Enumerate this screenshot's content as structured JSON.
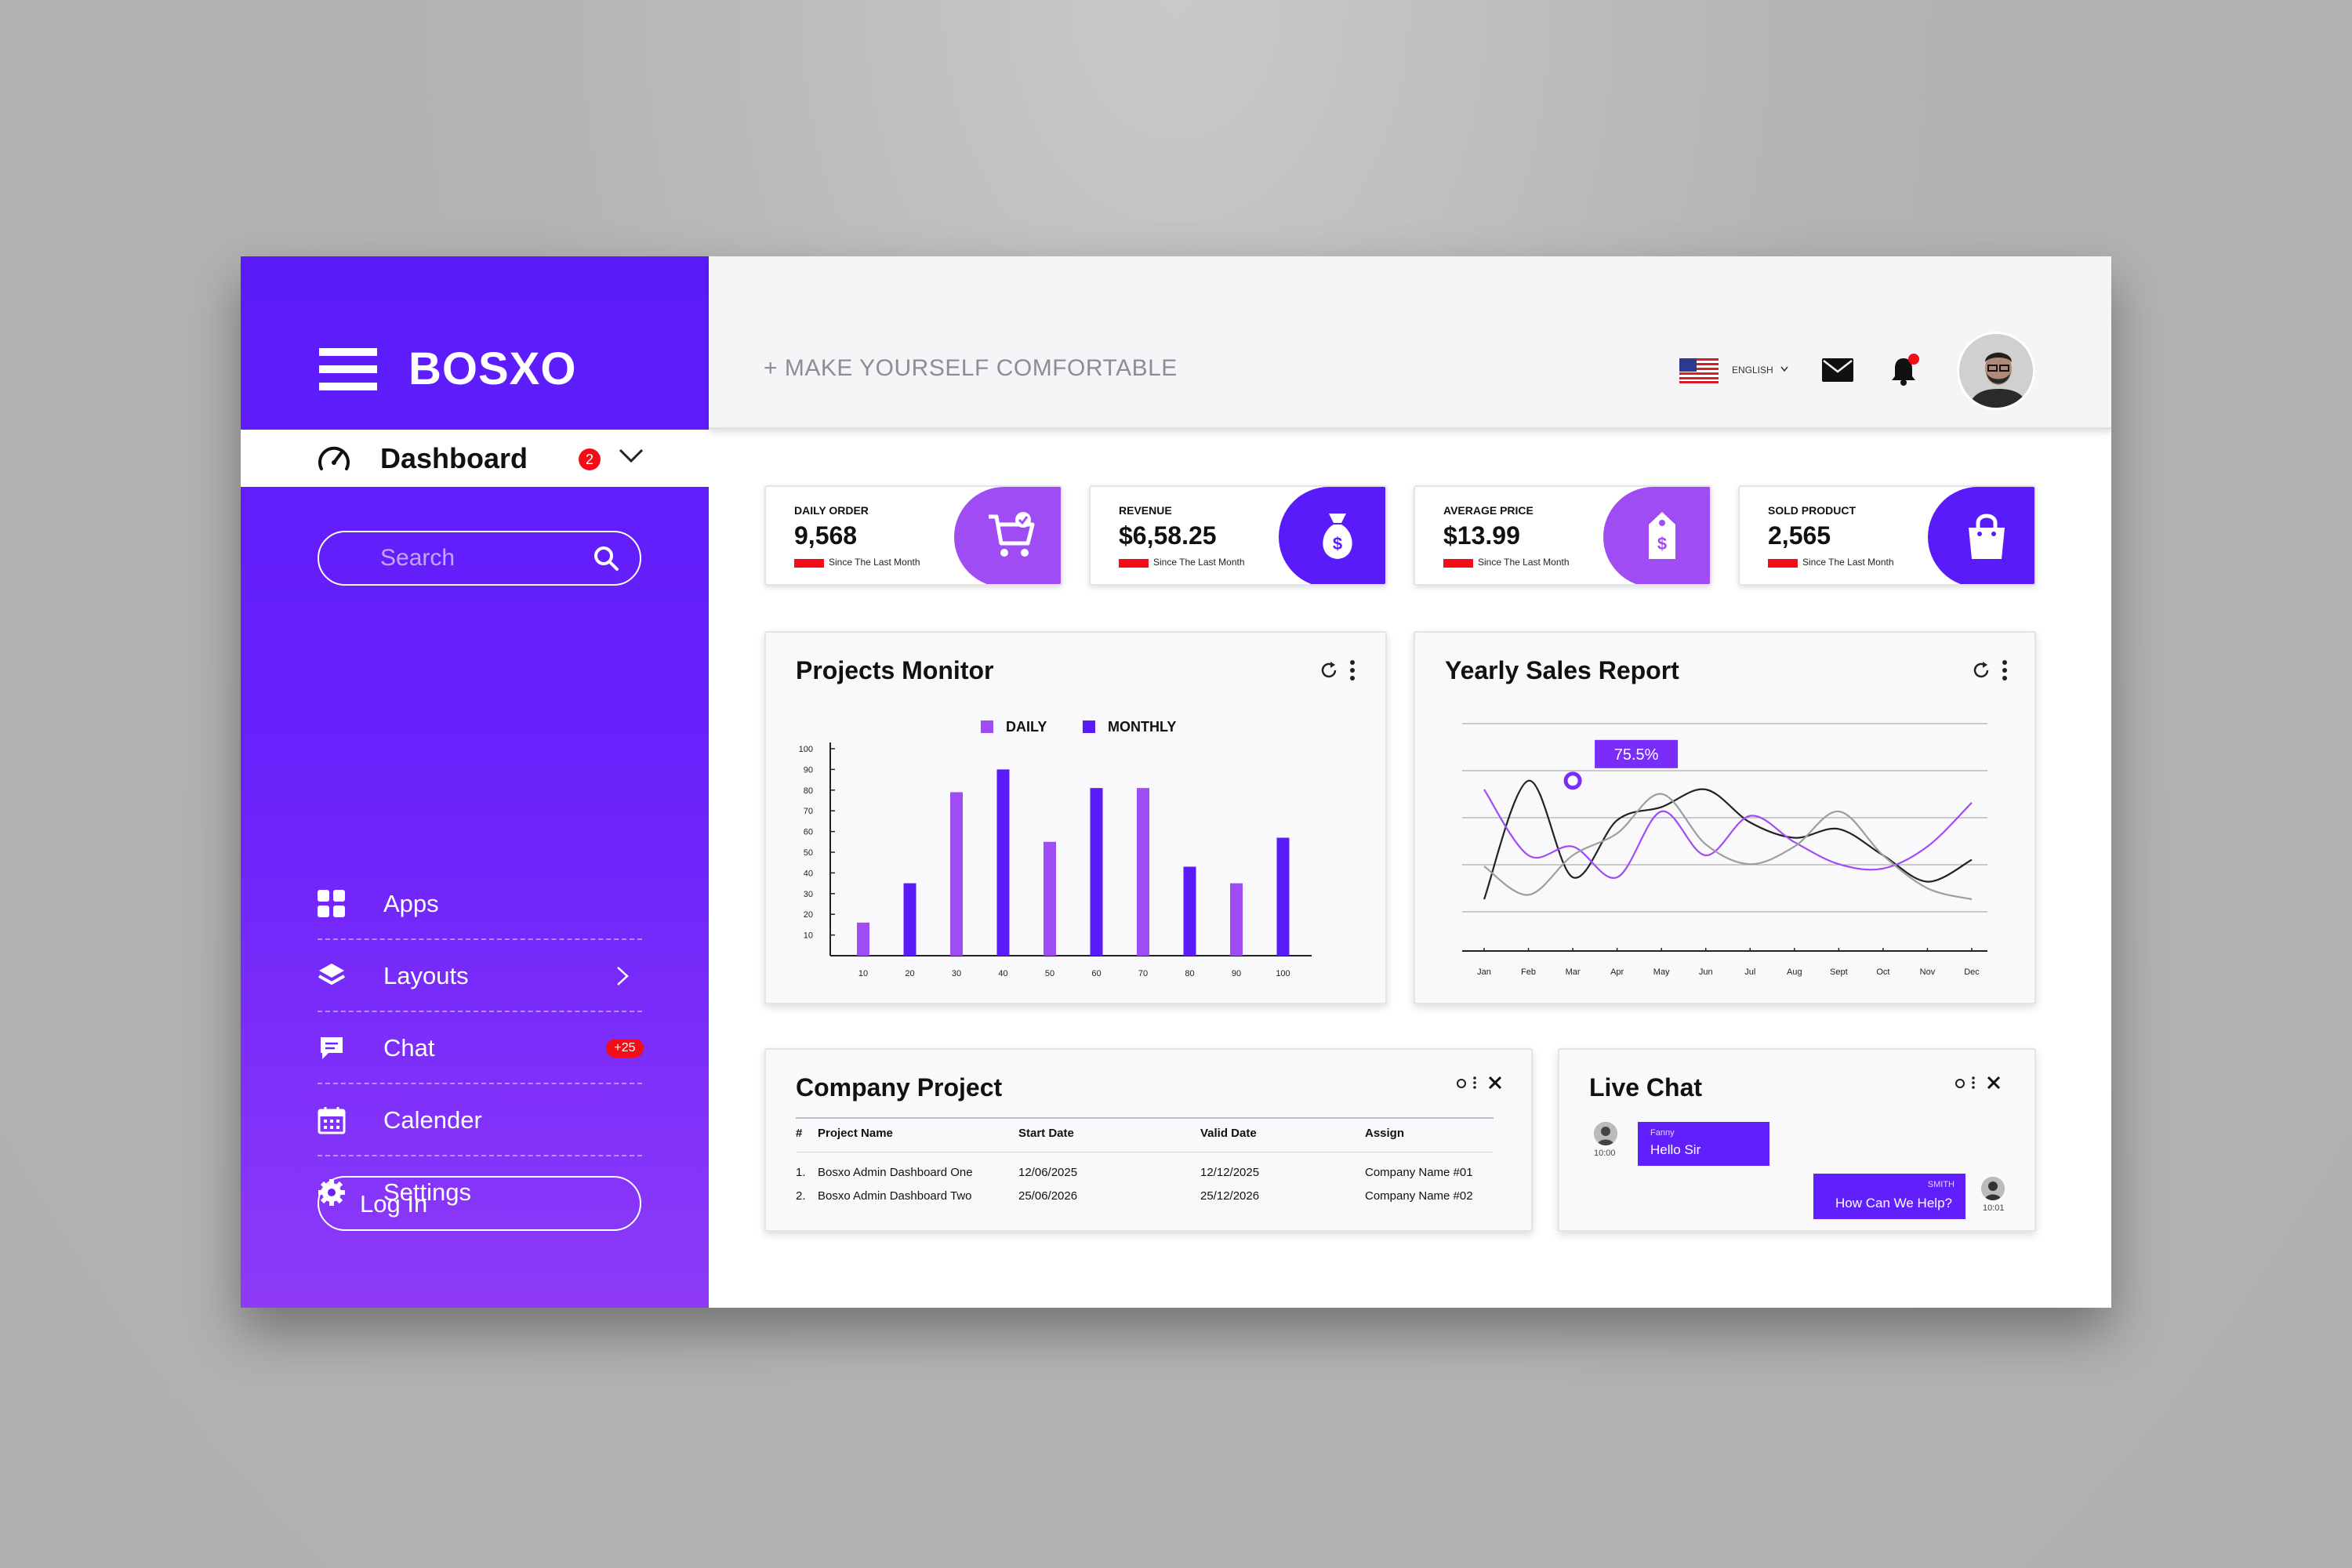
{
  "brand": {
    "name": "BOSXO"
  },
  "sidebar": {
    "dashboard": {
      "label": "Dashboard",
      "badge": "2"
    },
    "search": {
      "placeholder": "Search"
    },
    "items": [
      {
        "label": "Apps",
        "icon": "grid-icon"
      },
      {
        "label": "Layouts",
        "icon": "layers-icon"
      },
      {
        "label": "Chat",
        "icon": "chat-icon",
        "badge": "+25"
      },
      {
        "label": "Calender",
        "icon": "calendar-icon"
      },
      {
        "label": "Settings",
        "icon": "gear-icon"
      }
    ],
    "login": "Log In"
  },
  "header": {
    "tagline": "+ MAKE YOURSELF COMFORTABLE",
    "language": "ENGLISH"
  },
  "stats": [
    {
      "label": "DAILY ORDER",
      "value": "9,568",
      "note": "Since The Last Month",
      "icon": "cart-icon"
    },
    {
      "label": "REVENUE",
      "value": "$6,58.25",
      "note": "Since The Last Month",
      "icon": "money-bag-icon"
    },
    {
      "label": "AVERAGE PRICE",
      "value": "$13.99",
      "note": "Since The Last Month",
      "icon": "price-tag-icon"
    },
    {
      "label": "SOLD PRODUCT",
      "value": "2,565",
      "note": "Since The Last Month",
      "icon": "shopping-bag-icon"
    }
  ],
  "projects_monitor": {
    "title": "Projects Monitor",
    "legend": [
      "DAILY",
      "MONTHLY"
    ]
  },
  "yearly_sales": {
    "title": "Yearly Sales Report",
    "tooltip": "75.5%"
  },
  "chart_data": [
    {
      "type": "bar",
      "title": "Projects Monitor",
      "categories": [
        "10",
        "20",
        "30",
        "40",
        "50",
        "60",
        "70",
        "80",
        "90",
        "100"
      ],
      "yticks": [
        "10",
        "20",
        "30",
        "40",
        "50",
        "60",
        "70",
        "80",
        "90",
        "100"
      ],
      "ylim": [
        0,
        100
      ],
      "series": [
        {
          "name": "DAILY",
          "values": [
            16,
            35,
            79,
            90,
            55,
            81,
            81,
            43,
            35,
            57
          ]
        }
      ],
      "bar_colors": [
        "#9f4cf5",
        "#5a1bfb",
        "#9f4cf5",
        "#5a1bfb",
        "#9f4cf5",
        "#5a1bfb",
        "#9f4cf5",
        "#5a1bfb",
        "#9f4cf5",
        "#5a1bfb"
      ],
      "legend": [
        "DAILY",
        "MONTHLY"
      ],
      "legend_colors": [
        "#9f4cf5",
        "#5a1bfb"
      ],
      "legend_position": "top-center"
    },
    {
      "type": "line",
      "title": "Yearly Sales Report",
      "categories": [
        "Jan",
        "Feb",
        "Mar",
        "Apr",
        "May",
        "Jun",
        "Jul",
        "Aug",
        "Sept",
        "Oct",
        "Nov",
        "Dec"
      ],
      "ylim": [
        0,
        100
      ],
      "grid": true,
      "series": [
        {
          "color": "#222222",
          "values": [
            20,
            74,
            30,
            56,
            62,
            70,
            55,
            48,
            52,
            40,
            28,
            38
          ]
        },
        {
          "color": "#9f4cf5",
          "values": [
            70,
            40,
            44,
            30,
            60,
            40,
            58,
            46,
            36,
            34,
            44,
            64
          ]
        },
        {
          "color": "#9e9e9e",
          "values": [
            35,
            22,
            40,
            50,
            68,
            45,
            36,
            44,
            60,
            40,
            25,
            20
          ]
        }
      ],
      "annotation": {
        "label": "75.5%",
        "category": "Mar",
        "value": 74
      }
    }
  ],
  "company_project": {
    "title": "Company Project",
    "headers": [
      "#",
      "Project Name",
      "Start Date",
      "Valid Date",
      "Assign"
    ],
    "rows": [
      [
        "1.",
        "Bosxo Admin Dashboard One",
        "12/06/2025",
        "12/12/2025",
        "Company Name #01"
      ],
      [
        "2.",
        "Bosxo Admin Dashboard Two",
        "25/06/2026",
        "25/12/2026",
        "Company Name #02"
      ]
    ]
  },
  "live_chat": {
    "title": "Live Chat",
    "messages": [
      {
        "name": "Fanny",
        "text": "Hello Sir",
        "time": "10:00"
      },
      {
        "name": "SMITH",
        "text": "How Can We Help?",
        "time": "10:01"
      }
    ]
  },
  "colors": {
    "accent": "#5a1bfb",
    "accent_light": "#9f4cf5",
    "danger": "#f20d18"
  }
}
